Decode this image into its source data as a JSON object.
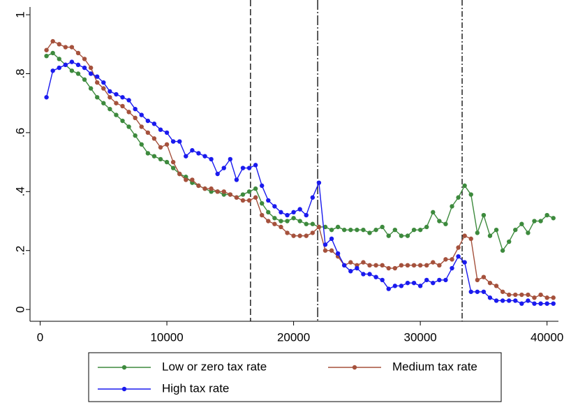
{
  "chart_data": {
    "type": "line",
    "x": [
      500,
      1000,
      1500,
      2000,
      2500,
      3000,
      3500,
      4000,
      4500,
      5000,
      5500,
      6000,
      6500,
      7000,
      7500,
      8000,
      8500,
      9000,
      9500,
      10000,
      10500,
      11000,
      11500,
      12000,
      12500,
      13000,
      13500,
      14000,
      14500,
      15000,
      15500,
      16000,
      16500,
      17000,
      17500,
      18000,
      18500,
      19000,
      19500,
      20000,
      20500,
      21000,
      21500,
      22000,
      22500,
      23000,
      23500,
      24000,
      24500,
      25000,
      25500,
      26000,
      26500,
      27000,
      27500,
      28000,
      28500,
      29000,
      29500,
      30000,
      30500,
      31000,
      31500,
      32000,
      32500,
      33000,
      33500,
      34000,
      34500,
      35000,
      35500,
      36000,
      36500,
      37000,
      37500,
      38000,
      38500,
      39000,
      39500,
      40000,
      40500
    ],
    "series": [
      {
        "name": "Low or zero tax rate",
        "color": "#3d8a3d",
        "values": [
          0.86,
          0.87,
          0.85,
          0.83,
          0.81,
          0.8,
          0.78,
          0.75,
          0.72,
          0.7,
          0.68,
          0.66,
          0.64,
          0.62,
          0.59,
          0.56,
          0.53,
          0.52,
          0.51,
          0.5,
          0.48,
          0.46,
          0.45,
          0.43,
          0.42,
          0.41,
          0.4,
          0.4,
          0.39,
          0.39,
          0.38,
          0.39,
          0.4,
          0.41,
          0.36,
          0.33,
          0.31,
          0.3,
          0.3,
          0.31,
          0.3,
          0.29,
          0.29,
          0.28,
          0.28,
          0.27,
          0.28,
          0.27,
          0.27,
          0.27,
          0.27,
          0.26,
          0.27,
          0.28,
          0.25,
          0.27,
          0.25,
          0.25,
          0.27,
          0.27,
          0.28,
          0.33,
          0.3,
          0.29,
          0.35,
          0.38,
          0.42,
          0.39,
          0.26,
          0.32,
          0.25,
          0.27,
          0.2,
          0.23,
          0.27,
          0.29,
          0.26,
          0.3,
          0.3,
          0.32,
          0.31
        ]
      },
      {
        "name": "Medium tax rate",
        "color": "#a5513c",
        "values": [
          0.88,
          0.91,
          0.9,
          0.89,
          0.89,
          0.87,
          0.85,
          0.82,
          0.77,
          0.75,
          0.72,
          0.7,
          0.69,
          0.67,
          0.65,
          0.62,
          0.6,
          0.58,
          0.55,
          0.56,
          0.5,
          0.46,
          0.44,
          0.44,
          0.42,
          0.41,
          0.41,
          0.4,
          0.4,
          0.39,
          0.38,
          0.37,
          0.37,
          0.38,
          0.32,
          0.3,
          0.29,
          0.28,
          0.26,
          0.25,
          0.25,
          0.25,
          0.26,
          0.28,
          0.2,
          0.2,
          0.18,
          0.15,
          0.16,
          0.15,
          0.16,
          0.15,
          0.15,
          0.15,
          0.14,
          0.14,
          0.15,
          0.15,
          0.15,
          0.15,
          0.15,
          0.16,
          0.15,
          0.17,
          0.17,
          0.21,
          0.25,
          0.24,
          0.1,
          0.11,
          0.09,
          0.08,
          0.06,
          0.05,
          0.05,
          0.05,
          0.05,
          0.04,
          0.05,
          0.04,
          0.04
        ]
      },
      {
        "name": "High tax rate",
        "color": "#1a1aee",
        "values": [
          0.72,
          0.81,
          0.82,
          0.83,
          0.84,
          0.83,
          0.82,
          0.8,
          0.79,
          0.77,
          0.74,
          0.73,
          0.72,
          0.71,
          0.68,
          0.66,
          0.64,
          0.63,
          0.61,
          0.6,
          0.57,
          0.57,
          0.52,
          0.54,
          0.53,
          0.52,
          0.51,
          0.46,
          0.48,
          0.51,
          0.44,
          0.48,
          0.48,
          0.49,
          0.42,
          0.37,
          0.35,
          0.33,
          0.32,
          0.33,
          0.34,
          0.32,
          0.38,
          0.43,
          0.22,
          0.24,
          0.19,
          0.15,
          0.13,
          0.14,
          0.12,
          0.12,
          0.11,
          0.1,
          0.07,
          0.08,
          0.08,
          0.09,
          0.09,
          0.08,
          0.1,
          0.09,
          0.1,
          0.1,
          0.14,
          0.18,
          0.16,
          0.06,
          0.06,
          0.06,
          0.04,
          0.03,
          0.03,
          0.03,
          0.03,
          0.02,
          0.03,
          0.02,
          0.02,
          0.02,
          0.02
        ]
      }
    ],
    "vlines": [
      16600,
      21900,
      33300
    ],
    "xlim": [
      -800,
      40900
    ],
    "ylim": [
      -0.04,
      1.05
    ],
    "xticks": [
      0,
      10000,
      20000,
      30000,
      40000
    ],
    "yticks": [
      0,
      {
        "value": 0.2,
        "label": ".2"
      },
      {
        "value": 0.4,
        "label": ".4"
      },
      {
        "value": 0.6,
        "label": ".6"
      },
      {
        "value": 0.8,
        "label": ".8"
      },
      1
    ]
  }
}
